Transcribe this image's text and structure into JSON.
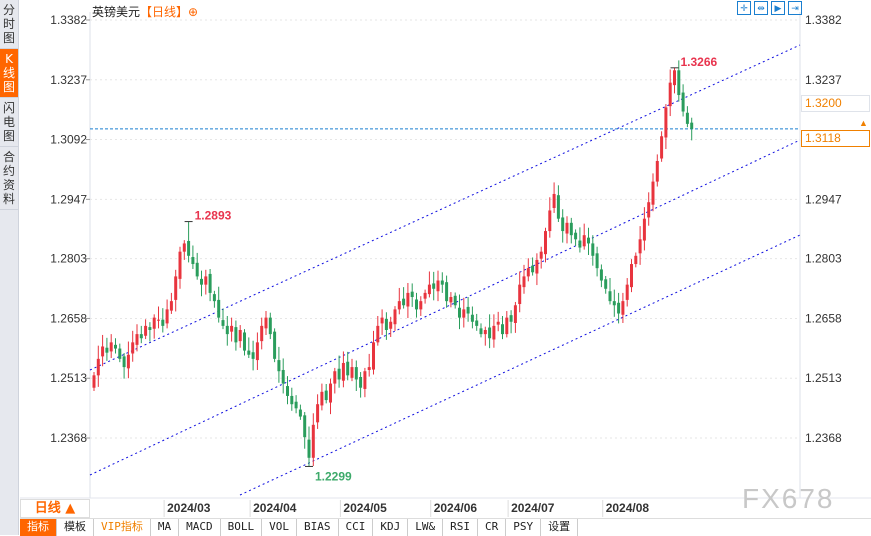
{
  "sidebar": {
    "items": [
      {
        "label": "分时图"
      },
      {
        "label": "K线图",
        "active": true
      },
      {
        "label": "闪电图"
      },
      {
        "label": "合约资料"
      }
    ]
  },
  "header": {
    "symbol": "英镑美元",
    "period": "【日线】",
    "add_icon": "⊕"
  },
  "toolbar_icons": [
    "crosshair-icon",
    "zoom-range-icon",
    "zoom-in-icon",
    "scroll-right-icon"
  ],
  "price_boxes": {
    "current": "1.3200",
    "last": "1.3118"
  },
  "period_select": "日线 ▲",
  "watermark": "FX678",
  "bottom_bar": [
    "指标",
    "模板",
    "VIP指标",
    "MA",
    "MACD",
    "BOLL",
    "VOL",
    "BIAS",
    "CCI",
    "KDJ",
    "LW&",
    "RSI",
    "CR",
    "PSY",
    "设置"
  ],
  "colors": {
    "up": "#e8343e",
    "down": "#2a9d5c",
    "accent": "#ff6600",
    "trend": "#1010e0",
    "hline": "#1a7fd0"
  },
  "chart_data": {
    "type": "candlestick",
    "title": "英镑美元 日线",
    "ylim": [
      1.2299,
      1.3382
    ],
    "y_ticks": [
      "1.3382",
      "1.3237",
      "1.3092",
      "1.2947",
      "1.2803",
      "1.2658",
      "1.2513",
      "1.2368"
    ],
    "x_ticks": [
      {
        "label": "2024/03",
        "index": 17
      },
      {
        "label": "2024/04",
        "index": 37
      },
      {
        "label": "2024/05",
        "index": 58
      },
      {
        "label": "2024/06",
        "index": 79
      },
      {
        "label": "2024/07",
        "index": 97
      },
      {
        "label": "2024/08",
        "index": 119
      }
    ],
    "annotations": [
      {
        "label": "1.2893",
        "index": 22,
        "value": 1.2893,
        "kind": "high"
      },
      {
        "label": "1.2299",
        "index": 50,
        "value": 1.2299,
        "kind": "low"
      },
      {
        "label": "1.3266",
        "index": 135,
        "value": 1.3266,
        "kind": "high"
      }
    ],
    "hline": 1.3118,
    "closes": [
      1.252,
      1.256,
      1.259,
      1.2575,
      1.26,
      1.2585,
      1.256,
      1.254,
      1.257,
      1.26,
      1.262,
      1.261,
      1.264,
      1.263,
      1.266,
      1.2655,
      1.264,
      1.268,
      1.27,
      1.276,
      1.282,
      1.284,
      1.281,
      1.279,
      1.276,
      1.274,
      1.276,
      1.272,
      1.27,
      1.266,
      1.264,
      1.262,
      1.264,
      1.26,
      1.263,
      1.258,
      1.257,
      1.256,
      1.26,
      1.264,
      1.266,
      1.262,
      1.256,
      1.253,
      1.25,
      1.247,
      1.245,
      1.244,
      1.242,
      1.237,
      1.232,
      1.24,
      1.245,
      1.248,
      1.246,
      1.25,
      1.253,
      1.251,
      1.255,
      1.252,
      1.254,
      1.251,
      1.249,
      1.253,
      1.254,
      1.26,
      1.264,
      1.266,
      1.263,
      1.265,
      1.268,
      1.27,
      1.269,
      1.272,
      1.271,
      1.268,
      1.27,
      1.272,
      1.274,
      1.273,
      1.275,
      1.274,
      1.27,
      1.271,
      1.269,
      1.266,
      1.268,
      1.267,
      1.265,
      1.264,
      1.262,
      1.263,
      1.261,
      1.264,
      1.265,
      1.262,
      1.266,
      1.265,
      1.269,
      1.274,
      1.276,
      1.278,
      1.277,
      1.28,
      1.282,
      1.287,
      1.292,
      1.296,
      1.29,
      1.287,
      1.289,
      1.286,
      1.285,
      1.283,
      1.286,
      1.284,
      1.281,
      1.278,
      1.275,
      1.273,
      1.27,
      1.269,
      1.267,
      1.27,
      1.274,
      1.279,
      1.281,
      1.285,
      1.29,
      1.294,
      1.299,
      1.304,
      1.31,
      1.317,
      1.323,
      1.326,
      1.32,
      1.316,
      1.313,
      1.3118
    ]
  }
}
